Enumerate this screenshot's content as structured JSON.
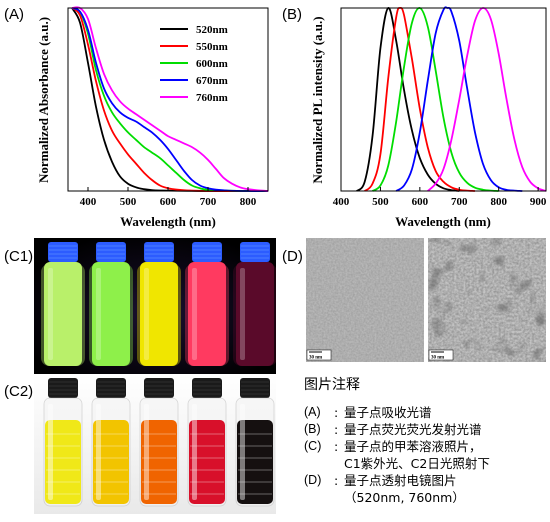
{
  "labels": {
    "a": "(A)",
    "b": "(B)",
    "c1": "(C1)",
    "c2": "(C2)",
    "d": "(D)"
  },
  "colors": {
    "520nm": "#000000",
    "550nm": "#ff0000",
    "600nm": "#00dd00",
    "670nm": "#0000ff",
    "760nm": "#ff00ff"
  },
  "chart_data": [
    {
      "type": "line",
      "panel": "(A)",
      "xlabel": "Wavelength (nm)",
      "ylabel": "Normalized Absorbance (a.u.)",
      "xlim": [
        350,
        850
      ],
      "ylim": [
        0,
        1
      ],
      "xticks": [
        400,
        500,
        600,
        700,
        800
      ],
      "legend": [
        "520nm",
        "550nm",
        "600nm",
        "670nm",
        "760nm"
      ],
      "series": [
        {
          "name": "520nm",
          "x": [
            360,
            380,
            400,
            420,
            440,
            460,
            480,
            500,
            520,
            540,
            560,
            580,
            600,
            650,
            700,
            800,
            850
          ],
          "y": [
            1.0,
            0.92,
            0.7,
            0.46,
            0.28,
            0.16,
            0.08,
            0.04,
            0.02,
            0.01,
            0.005,
            0.003,
            0.002,
            0.001,
            0.0,
            0.0,
            0.0
          ]
        },
        {
          "name": "550nm",
          "x": [
            360,
            380,
            400,
            420,
            440,
            460,
            480,
            500,
            520,
            540,
            560,
            580,
            600,
            620,
            650,
            700,
            800,
            850
          ],
          "y": [
            1.0,
            0.96,
            0.8,
            0.6,
            0.44,
            0.33,
            0.26,
            0.2,
            0.15,
            0.1,
            0.06,
            0.03,
            0.015,
            0.008,
            0.003,
            0.0,
            0.0,
            0.0
          ]
        },
        {
          "name": "600nm",
          "x": [
            360,
            380,
            400,
            420,
            440,
            460,
            480,
            500,
            520,
            540,
            560,
            580,
            600,
            620,
            640,
            660,
            680,
            700,
            750,
            800,
            850
          ],
          "y": [
            1.0,
            0.98,
            0.86,
            0.66,
            0.52,
            0.43,
            0.37,
            0.32,
            0.28,
            0.24,
            0.21,
            0.18,
            0.14,
            0.1,
            0.06,
            0.03,
            0.015,
            0.007,
            0.002,
            0.0,
            0.0
          ]
        },
        {
          "name": "670nm",
          "x": [
            360,
            380,
            400,
            420,
            440,
            460,
            480,
            500,
            520,
            540,
            560,
            580,
            600,
            620,
            640,
            660,
            680,
            700,
            720,
            750,
            800,
            850
          ],
          "y": [
            1.0,
            0.98,
            0.88,
            0.7,
            0.56,
            0.48,
            0.43,
            0.4,
            0.38,
            0.35,
            0.32,
            0.28,
            0.23,
            0.17,
            0.11,
            0.06,
            0.03,
            0.015,
            0.007,
            0.002,
            0.0,
            0.0
          ]
        },
        {
          "name": "760nm",
          "x": [
            360,
            380,
            400,
            420,
            440,
            460,
            480,
            500,
            520,
            540,
            560,
            580,
            600,
            620,
            640,
            660,
            680,
            700,
            720,
            740,
            760,
            780,
            800,
            820,
            850
          ],
          "y": [
            1.0,
            1.0,
            0.94,
            0.78,
            0.64,
            0.55,
            0.49,
            0.45,
            0.42,
            0.39,
            0.36,
            0.33,
            0.3,
            0.28,
            0.26,
            0.24,
            0.21,
            0.17,
            0.12,
            0.07,
            0.04,
            0.02,
            0.01,
            0.005,
            0.0
          ]
        }
      ]
    },
    {
      "type": "line",
      "panel": "(B)",
      "xlabel": "Wavelength (nm)",
      "ylabel": "Normalized PL intensity (a.u.)",
      "xlim": [
        400,
        920
      ],
      "ylim": [
        0,
        1
      ],
      "xticks": [
        400,
        500,
        600,
        700,
        800,
        900
      ],
      "series": [
        {
          "name": "520nm",
          "peak": 520,
          "x": [
            440,
            460,
            480,
            500,
            520,
            540,
            560,
            580,
            600,
            620,
            640,
            660,
            680,
            700
          ],
          "y": [
            0.0,
            0.05,
            0.3,
            0.78,
            1.0,
            0.82,
            0.55,
            0.33,
            0.18,
            0.09,
            0.04,
            0.015,
            0.005,
            0.0
          ]
        },
        {
          "name": "550nm",
          "peak": 550,
          "x": [
            460,
            480,
            500,
            520,
            540,
            550,
            560,
            580,
            600,
            620,
            640,
            660,
            680,
            700,
            720,
            740
          ],
          "y": [
            0.0,
            0.04,
            0.2,
            0.62,
            0.95,
            1.0,
            0.96,
            0.72,
            0.45,
            0.24,
            0.11,
            0.05,
            0.02,
            0.007,
            0.002,
            0.0
          ]
        },
        {
          "name": "600nm",
          "peak": 600,
          "x": [
            480,
            500,
            520,
            540,
            560,
            580,
            600,
            620,
            640,
            660,
            680,
            700,
            720,
            740,
            760,
            780,
            800
          ],
          "y": [
            0.0,
            0.03,
            0.14,
            0.38,
            0.68,
            0.92,
            1.0,
            0.9,
            0.66,
            0.4,
            0.21,
            0.1,
            0.045,
            0.018,
            0.007,
            0.002,
            0.0
          ]
        },
        {
          "name": "670nm",
          "peak": 670,
          "x": [
            540,
            560,
            580,
            600,
            620,
            640,
            660,
            670,
            680,
            700,
            720,
            740,
            760,
            780,
            800,
            820,
            840,
            860
          ],
          "y": [
            0.0,
            0.03,
            0.12,
            0.32,
            0.6,
            0.86,
            0.99,
            1.0,
            0.98,
            0.82,
            0.56,
            0.32,
            0.15,
            0.06,
            0.02,
            0.006,
            0.002,
            0.0
          ]
        },
        {
          "name": "760nm",
          "peak": 760,
          "x": [
            620,
            640,
            660,
            680,
            700,
            720,
            740,
            760,
            780,
            800,
            820,
            840,
            860,
            880,
            900,
            920
          ],
          "y": [
            0.0,
            0.04,
            0.12,
            0.28,
            0.5,
            0.74,
            0.93,
            1.0,
            0.94,
            0.75,
            0.5,
            0.28,
            0.13,
            0.05,
            0.015,
            0.0
          ]
        }
      ]
    }
  ],
  "photos": {
    "c1_liquid": [
      "#b9f06a",
      "#8ef04a",
      "#f0e600",
      "#ff3a60",
      "#5a0a2a"
    ],
    "c1_cap": "#2c5cff",
    "c2_liquid": [
      "#f0e818",
      "#f2c400",
      "#f06400",
      "#d8102a",
      "#151010"
    ],
    "c2_cap": "#1a1a1a"
  },
  "tem": {
    "scale_1": "30 nm",
    "scale_2": "30 nm"
  },
  "notes": {
    "title": "图片注释",
    "a_key": "(A)",
    "a_text": "量子点吸收光谱",
    "b_key": "(B)",
    "b_text": "量子点荧光荧光发射光谱",
    "c_key": "(C)",
    "c_text": "量子点的甲苯溶液照片，",
    "c_text2": "C1紫外光、C2日光照射下",
    "d_key": "(D)",
    "d_text": "量子点透射电镜图片",
    "d_text2": "（520nm, 760nm）"
  }
}
